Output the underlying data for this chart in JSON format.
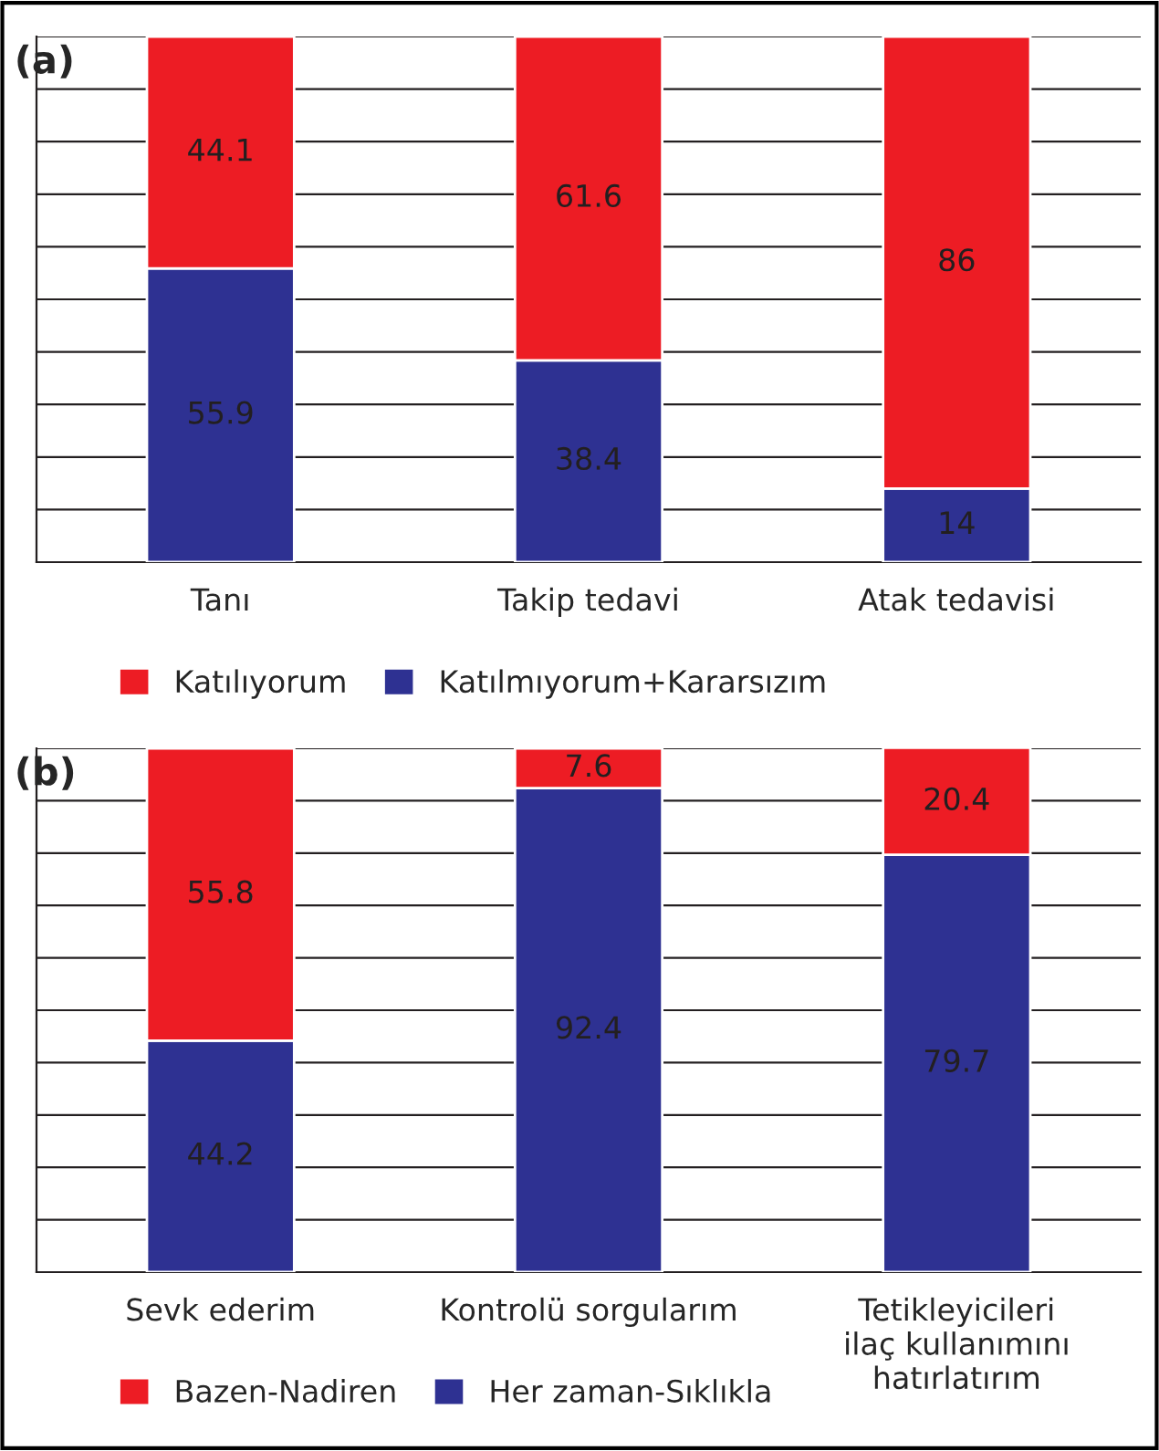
{
  "chart_data": [
    {
      "type": "bar",
      "title": "(a)",
      "categories": [
        "Tanı",
        "Takip tedavi",
        "Atak tedavisi"
      ],
      "stacked": true,
      "data_labels": true,
      "grid": "y",
      "legend": "bottom",
      "tick_labels": "x",
      "ylim": [
        0,
        100
      ],
      "yticks": [
        {
          "value": 0,
          "label": null
        },
        {
          "value": 10,
          "label": null
        },
        {
          "value": 20,
          "label": null
        },
        {
          "value": 30,
          "label": null
        },
        {
          "value": 40,
          "label": null
        },
        {
          "value": 50,
          "label": null
        },
        {
          "value": 60,
          "label": null
        },
        {
          "value": 70,
          "label": null
        },
        {
          "value": 80,
          "label": null
        },
        {
          "value": 90,
          "label": null
        },
        {
          "value": 100,
          "label": null
        }
      ],
      "series": [
        {
          "name": "Katılmıyorum+Kararsızım",
          "color": "#2e3192",
          "values": [
            55.9,
            38.4,
            14
          ]
        },
        {
          "name": "Katılıyorum",
          "color": "#ed1c24",
          "values": [
            44.1,
            61.6,
            86
          ]
        }
      ]
    },
    {
      "type": "bar",
      "title": "(b)",
      "categories": [
        "Sevk ederim",
        "Kontrolü sorgularım",
        "Tetikleyicileri\nilaç kullanımını\nhatırlatırım"
      ],
      "stacked": true,
      "data_labels": true,
      "grid": "y",
      "legend": "bottom",
      "tick_labels": "x",
      "ylim": [
        0,
        100
      ],
      "yticks": [
        {
          "value": 0,
          "label": null
        },
        {
          "value": 10,
          "label": null
        },
        {
          "value": 20,
          "label": null
        },
        {
          "value": 30,
          "label": null
        },
        {
          "value": 40,
          "label": null
        },
        {
          "value": 50,
          "label": null
        },
        {
          "value": 60,
          "label": null
        },
        {
          "value": 70,
          "label": null
        },
        {
          "value": 80,
          "label": null
        },
        {
          "value": 90,
          "label": null
        },
        {
          "value": 100,
          "label": null
        }
      ],
      "series": [
        {
          "name": "Her zaman-Sıklıkla",
          "color": "#2e3192",
          "values": [
            44.2,
            92.4,
            79.7
          ]
        },
        {
          "name": "Bazen-Nadiren",
          "color": "#ed1c24",
          "values": [
            55.8,
            7.6,
            20.4
          ]
        }
      ]
    }
  ]
}
